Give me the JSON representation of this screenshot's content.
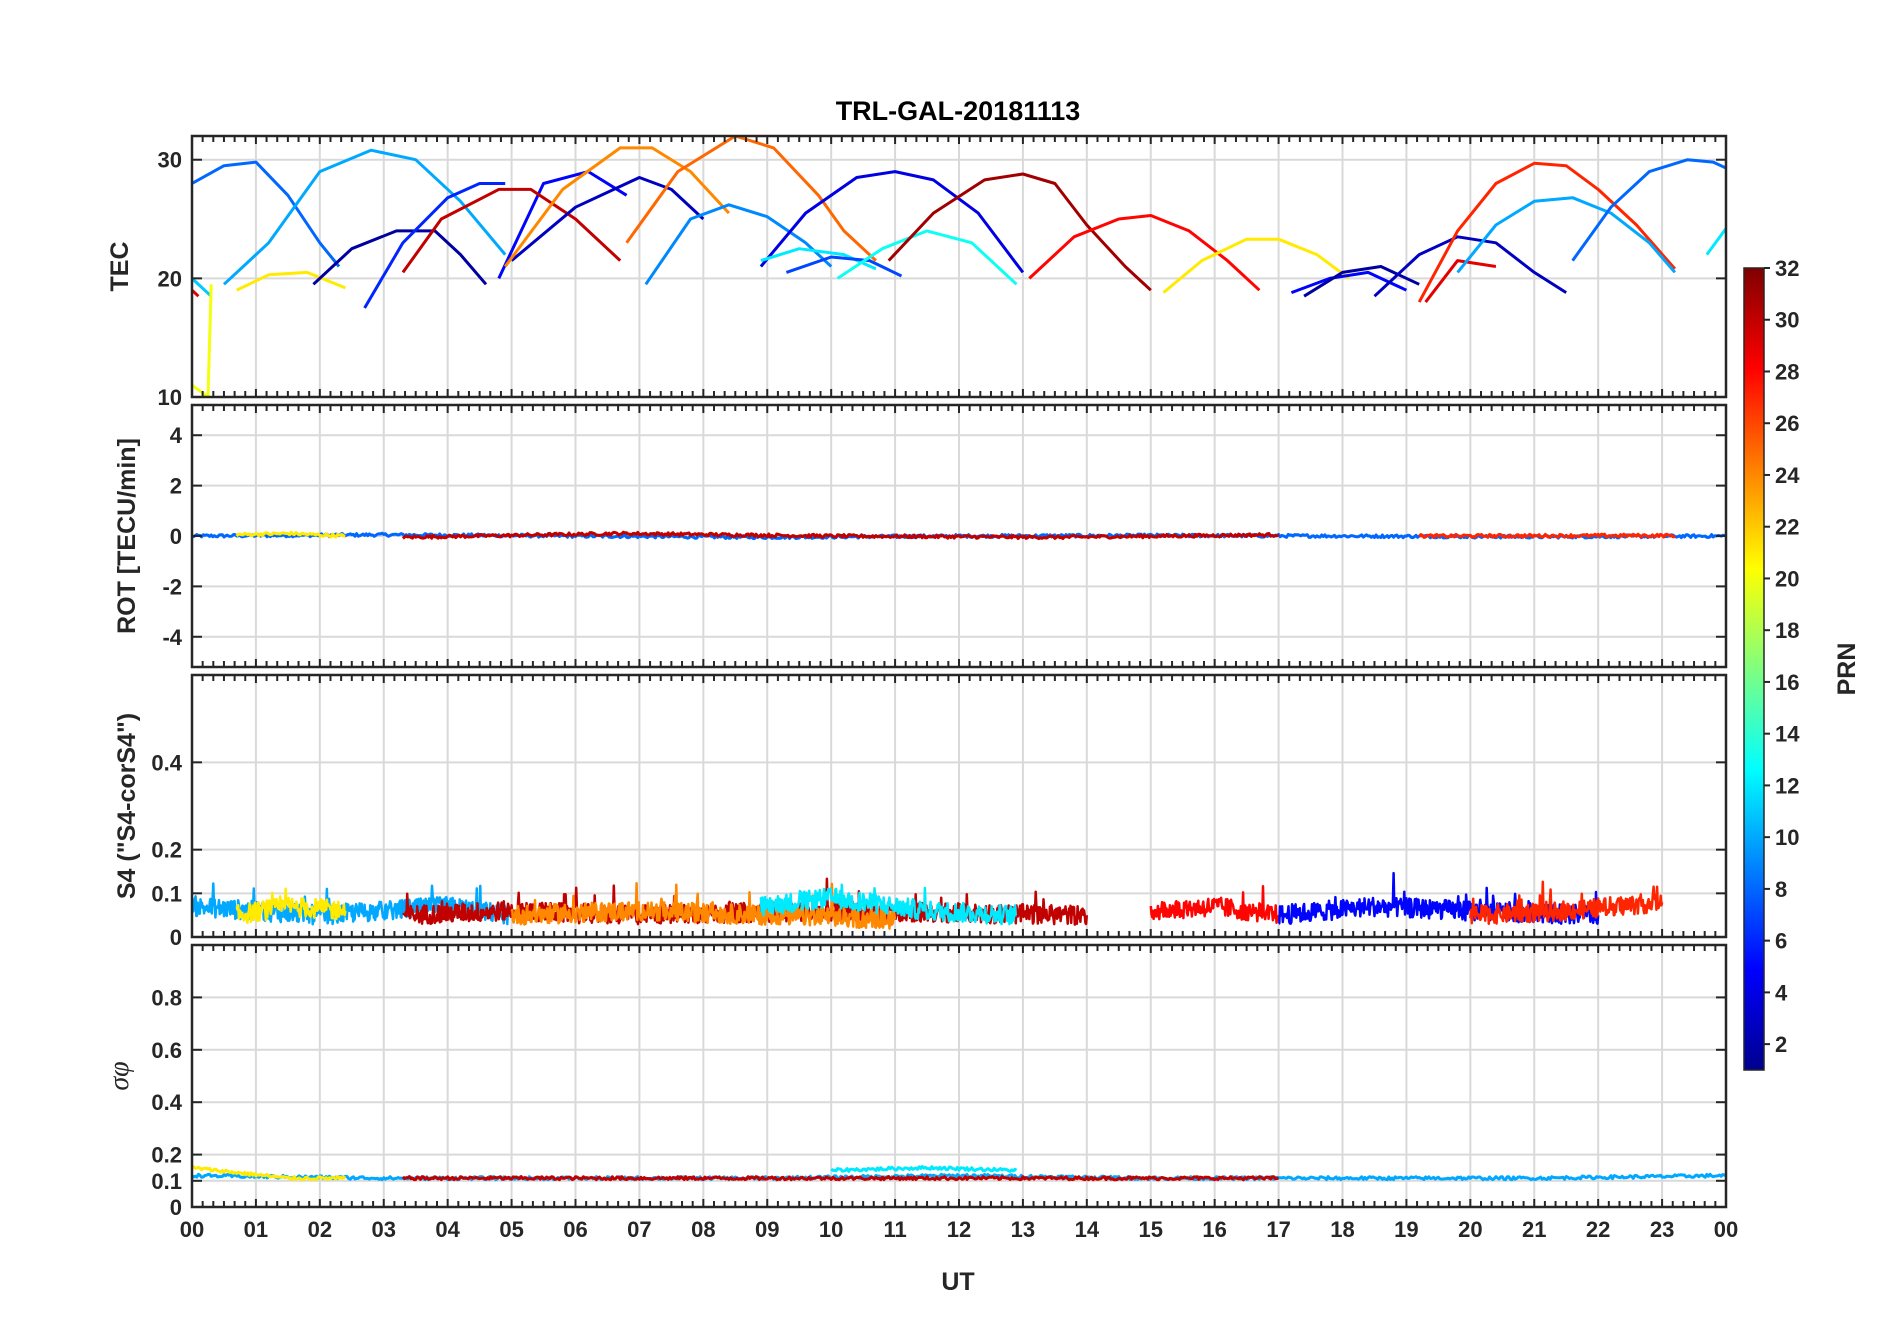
{
  "chart_data": {
    "type": "line",
    "title": "TRL-GAL-20181113",
    "xlabel": "UT",
    "x_tick_labels": [
      "00",
      "01",
      "02",
      "03",
      "04",
      "05",
      "06",
      "07",
      "08",
      "09",
      "10",
      "11",
      "12",
      "13",
      "14",
      "15",
      "16",
      "17",
      "18",
      "19",
      "20",
      "21",
      "22",
      "23",
      "00"
    ],
    "xlim": [
      0,
      24
    ],
    "colorbar": {
      "label": "PRN",
      "range": [
        1,
        32
      ],
      "tick_labels": [
        "2",
        "4",
        "6",
        "8",
        "10",
        "12",
        "14",
        "16",
        "18",
        "20",
        "22",
        "24",
        "26",
        "28",
        "30",
        "32"
      ],
      "colormap": "jet"
    },
    "panels": [
      {
        "name": "TEC",
        "ylabel": "TEC",
        "ylim": [
          10,
          32
        ],
        "y_ticks": [
          10,
          20,
          30
        ],
        "y_tick_labels": [
          "10",
          "20",
          "30"
        ],
        "series": [
          {
            "prn": 8,
            "x": [
              0.0,
              0.5,
              1.0,
              1.5,
              2.0,
              2.3
            ],
            "y": [
              28.0,
              29.5,
              29.8,
              27.0,
              23.0,
              21.0
            ]
          },
          {
            "prn": 11,
            "x": [
              0.0,
              0.3
            ],
            "y": [
              20.0,
              18.5
            ]
          },
          {
            "prn": 20,
            "x": [
              0.0,
              0.25,
              0.3
            ],
            "y": [
              11.0,
              10.0,
              19.5
            ]
          },
          {
            "prn": 29,
            "x": [
              0.0,
              0.1
            ],
            "y": [
              19.0,
              18.5
            ]
          },
          {
            "prn": 21,
            "x": [
              0.7,
              1.2,
              1.8,
              2.4
            ],
            "y": [
              19.0,
              20.3,
              20.5,
              19.2
            ]
          },
          {
            "prn": 10,
            "x": [
              0.5,
              1.2,
              2.0,
              2.8,
              3.5,
              4.2,
              4.9
            ],
            "y": [
              19.5,
              23.0,
              29.0,
              30.8,
              30.0,
              26.5,
              22.0
            ]
          },
          {
            "prn": 2,
            "x": [
              1.9,
              2.5,
              3.2,
              3.8,
              4.2,
              4.6
            ],
            "y": [
              19.5,
              22.5,
              24.0,
              24.0,
              22.0,
              19.5
            ]
          },
          {
            "prn": 6,
            "x": [
              2.7,
              3.3,
              4.0,
              4.5,
              4.9
            ],
            "y": [
              17.5,
              23.0,
              26.8,
              28.0,
              28.0
            ]
          },
          {
            "prn": 5,
            "x": [
              4.8,
              5.5,
              6.2,
              6.8
            ],
            "y": [
              20.0,
              28.0,
              29.0,
              27.0
            ]
          },
          {
            "prn": 30,
            "x": [
              3.3,
              3.9,
              4.8,
              5.3,
              6.0,
              6.7
            ],
            "y": [
              20.5,
              25.0,
              27.5,
              27.5,
              25.0,
              21.5
            ]
          },
          {
            "prn": 3,
            "x": [
              5.0,
              6.0,
              7.0,
              7.5,
              8.0
            ],
            "y": [
              21.5,
              26.0,
              28.5,
              27.5,
              25.0
            ]
          },
          {
            "prn": 24,
            "x": [
              4.9,
              5.8,
              6.7,
              7.2,
              7.8,
              8.4
            ],
            "y": [
              21.0,
              27.5,
              31.0,
              31.0,
              29.0,
              25.5
            ]
          },
          {
            "prn": 25,
            "x": [
              6.8,
              7.6,
              8.5,
              9.1,
              9.8,
              10.2,
              10.7
            ],
            "y": [
              23.0,
              29.0,
              32.0,
              31.0,
              27.0,
              24.0,
              21.5
            ]
          },
          {
            "prn": 9,
            "x": [
              7.1,
              7.8,
              8.4,
              9.0,
              9.6,
              10.0
            ],
            "y": [
              19.5,
              25.0,
              26.2,
              25.2,
              23.0,
              21.0
            ]
          },
          {
            "prn": 4,
            "x": [
              8.9,
              9.6,
              10.4,
              11.0,
              11.6,
              12.3,
              13.0
            ],
            "y": [
              21.0,
              25.5,
              28.5,
              29.0,
              28.3,
              25.5,
              20.5
            ]
          },
          {
            "prn": 12,
            "x": [
              8.9,
              9.5,
              10.2,
              10.7
            ],
            "y": [
              21.5,
              22.5,
              22.0,
              20.8
            ]
          },
          {
            "prn": 7,
            "x": [
              9.3,
              10.0,
              10.6,
              11.1
            ],
            "y": [
              20.5,
              21.8,
              21.5,
              20.2
            ]
          },
          {
            "prn": 13,
            "x": [
              10.1,
              10.8,
              11.5,
              12.2,
              12.9
            ],
            "y": [
              20.0,
              22.5,
              24.0,
              23.0,
              19.5
            ]
          },
          {
            "prn": 31,
            "x": [
              10.9,
              11.6,
              12.4,
              13.0,
              13.5,
              14.0,
              14.6,
              15.0
            ],
            "y": [
              21.5,
              25.5,
              28.3,
              28.8,
              28.0,
              24.5,
              21.0,
              19.0
            ]
          },
          {
            "prn": 28,
            "x": [
              13.1,
              13.8,
              14.5,
              15.0,
              15.6,
              16.2,
              16.7
            ],
            "y": [
              20.0,
              23.5,
              25.0,
              25.3,
              24.0,
              21.5,
              19.0
            ]
          },
          {
            "prn": 21,
            "x": [
              15.2,
              15.8,
              16.5,
              17.0,
              17.6,
              18.1
            ],
            "y": [
              18.8,
              21.5,
              23.3,
              23.3,
              22.0,
              20.0
            ]
          },
          {
            "prn": 5,
            "x": [
              17.2,
              17.8,
              18.4,
              19.0
            ],
            "y": [
              18.8,
              20.0,
              20.5,
              19.0
            ]
          },
          {
            "prn": 2,
            "x": [
              17.4,
              18.0,
              18.6,
              19.2
            ],
            "y": [
              18.5,
              20.5,
              21.0,
              19.5
            ]
          },
          {
            "prn": 3,
            "x": [
              18.5,
              19.2,
              19.8,
              20.4,
              21.0,
              21.5
            ],
            "y": [
              18.5,
              22.0,
              23.5,
              23.0,
              20.5,
              18.8
            ]
          },
          {
            "prn": 29,
            "x": [
              19.3,
              19.8,
              20.4
            ],
            "y": [
              18.0,
              21.5,
              21.0
            ]
          },
          {
            "prn": 27,
            "x": [
              19.2,
              19.8,
              20.4,
              21.0,
              21.5,
              22.0,
              22.6,
              23.2
            ],
            "y": [
              18.0,
              24.0,
              28.0,
              29.7,
              29.5,
              27.5,
              24.5,
              20.8
            ]
          },
          {
            "prn": 10,
            "x": [
              19.8,
              20.4,
              21.0,
              21.6,
              22.2,
              22.8,
              23.2
            ],
            "y": [
              20.5,
              24.5,
              26.5,
              26.8,
              25.5,
              23.0,
              20.5
            ]
          },
          {
            "prn": 8,
            "x": [
              21.6,
              22.2,
              22.8,
              23.4,
              23.8,
              24.0
            ],
            "y": [
              21.5,
              26.0,
              29.0,
              30.0,
              29.8,
              29.3
            ]
          },
          {
            "prn": 12,
            "x": [
              23.7,
              24.0
            ],
            "y": [
              22.0,
              24.2
            ]
          }
        ]
      },
      {
        "name": "ROT",
        "ylabel": "ROT [TECU/min]",
        "ylim": [
          -5.2,
          5.2
        ],
        "y_ticks": [
          -4,
          -2,
          0,
          2,
          4
        ],
        "y_tick_labels": [
          "-4",
          "-2",
          "0",
          "2",
          "4"
        ],
        "series": [
          {
            "prn": 8,
            "x": [
              0.0,
              3.0,
              6.0,
              9.0,
              12.0,
              15.0,
              18.0,
              21.0,
              24.0
            ],
            "y": [
              0.0,
              0.05,
              0.0,
              -0.05,
              0.0,
              0.02,
              0.0,
              -0.03,
              0.0
            ]
          },
          {
            "prn": 21,
            "x": [
              0.7,
              1.5,
              2.4
            ],
            "y": [
              0.05,
              0.1,
              0.0
            ]
          },
          {
            "prn": 30,
            "x": [
              3.3,
              6.7,
              10.0,
              13.5,
              17.0
            ],
            "y": [
              -0.05,
              0.1,
              0.0,
              -0.05,
              0.05
            ]
          },
          {
            "prn": 27,
            "x": [
              19.2,
              23.2
            ],
            "y": [
              0.0,
              0.02
            ]
          }
        ]
      },
      {
        "name": "S4",
        "ylabel": "S4 (\"S4-corS4\")",
        "ylim": [
          0,
          0.6
        ],
        "y_ticks": [
          0,
          0.1,
          0.2,
          0.4
        ],
        "y_tick_labels": [
          "0",
          "0.1",
          "0.2",
          "0.4"
        ],
        "series": [
          {
            "prn": 10,
            "x": [
              0.0,
              1.0,
              2.0,
              3.0,
              4.0,
              5.0
            ],
            "y": [
              0.07,
              0.06,
              0.05,
              0.06,
              0.07,
              0.05
            ]
          },
          {
            "prn": 21,
            "x": [
              0.7,
              1.5,
              2.4
            ],
            "y": [
              0.05,
              0.07,
              0.06
            ]
          },
          {
            "prn": 30,
            "x": [
              3.3,
              5.0,
              6.7,
              10.0,
              14.0
            ],
            "y": [
              0.05,
              0.06,
              0.05,
              0.06,
              0.05
            ]
          },
          {
            "prn": 24,
            "x": [
              5.0,
              7.0,
              9.0,
              11.0
            ],
            "y": [
              0.05,
              0.06,
              0.05,
              0.04
            ]
          },
          {
            "prn": 12,
            "x": [
              8.9,
              10.0,
              11.5,
              12.9
            ],
            "y": [
              0.07,
              0.09,
              0.06,
              0.05
            ]
          },
          {
            "prn": 28,
            "x": [
              15.0,
              16.0,
              17.0
            ],
            "y": [
              0.06,
              0.07,
              0.05
            ]
          },
          {
            "prn": 5,
            "x": [
              17.0,
              18.5,
              20.0,
              22.0
            ],
            "y": [
              0.05,
              0.07,
              0.06,
              0.05
            ]
          },
          {
            "prn": 27,
            "x": [
              20.0,
              21.5,
              23.0
            ],
            "y": [
              0.05,
              0.06,
              0.08
            ]
          }
        ]
      },
      {
        "name": "sigma_phi",
        "ylabel": "σφ",
        "ylim": [
          0,
          1
        ],
        "y_ticks": [
          0,
          0.1,
          0.2,
          0.4,
          0.6,
          0.8
        ],
        "y_tick_labels": [
          "0",
          "0.1",
          "0.2",
          "0.4",
          "0.6",
          "0.8"
        ],
        "series": [
          {
            "prn": 10,
            "x": [
              0.0,
              3.0,
              6.0,
              9.0,
              12.0,
              15.0,
              18.0,
              21.0,
              24.0
            ],
            "y": [
              0.12,
              0.11,
              0.11,
              0.11,
              0.12,
              0.11,
              0.11,
              0.11,
              0.12
            ]
          },
          {
            "prn": 12,
            "x": [
              10.0,
              11.5,
              12.9
            ],
            "y": [
              0.14,
              0.15,
              0.14
            ]
          },
          {
            "prn": 21,
            "x": [
              0.0,
              1.5,
              2.4
            ],
            "y": [
              0.15,
              0.11,
              0.11
            ]
          },
          {
            "prn": 30,
            "x": [
              3.3,
              8.0,
              13.0,
              17.0
            ],
            "y": [
              0.11,
              0.11,
              0.11,
              0.11
            ]
          }
        ]
      }
    ]
  }
}
